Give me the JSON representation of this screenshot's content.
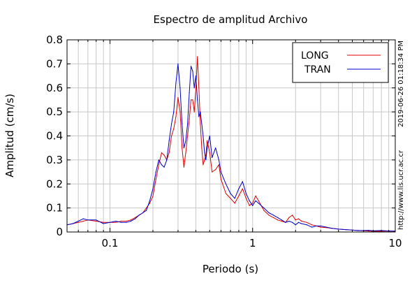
{
  "chart_data": {
    "type": "line",
    "title": "Espectro de amplitud Archivo",
    "xlabel": "Periodo (s)",
    "ylabel": "Amplitud (cm/s)",
    "x_scale": "log",
    "xlim": [
      0.05,
      10
    ],
    "ylim": [
      0,
      0.8
    ],
    "x_ticks": [
      {
        "value": 0.1,
        "label": "0.1"
      },
      {
        "value": 1,
        "label": "1"
      },
      {
        "value": 10,
        "label": "10"
      }
    ],
    "y_ticks": [
      {
        "value": 0,
        "label": "0"
      },
      {
        "value": 0.1,
        "label": "0.1"
      },
      {
        "value": 0.2,
        "label": "0.2"
      },
      {
        "value": 0.3,
        "label": "0.3"
      },
      {
        "value": 0.4,
        "label": "0.4"
      },
      {
        "value": 0.5,
        "label": "0.5"
      },
      {
        "value": 0.6,
        "label": "0.6"
      },
      {
        "value": 0.7,
        "label": "0.7"
      },
      {
        "value": 0.8,
        "label": "0.8"
      }
    ],
    "grid": true,
    "legend_position": "top-right",
    "series": [
      {
        "name": "LONG",
        "color": "#dd0000",
        "x": [
          0.05,
          0.055,
          0.06,
          0.065,
          0.07,
          0.08,
          0.09,
          0.1,
          0.11,
          0.12,
          0.13,
          0.14,
          0.15,
          0.16,
          0.17,
          0.18,
          0.19,
          0.2,
          0.21,
          0.22,
          0.23,
          0.24,
          0.25,
          0.26,
          0.27,
          0.28,
          0.29,
          0.3,
          0.31,
          0.32,
          0.33,
          0.34,
          0.35,
          0.36,
          0.37,
          0.38,
          0.39,
          0.4,
          0.41,
          0.42,
          0.43,
          0.44,
          0.45,
          0.46,
          0.47,
          0.48,
          0.5,
          0.52,
          0.55,
          0.58,
          0.6,
          0.65,
          0.7,
          0.75,
          0.8,
          0.85,
          0.9,
          0.95,
          1,
          1.05,
          1.1,
          1.2,
          1.3,
          1.4,
          1.5,
          1.6,
          1.7,
          1.8,
          1.9,
          2,
          2.1,
          2.2,
          2.4,
          2.6,
          2.8,
          3,
          3.3,
          3.6,
          4,
          4.5,
          5,
          5.5,
          6,
          6.5,
          7,
          8,
          9,
          10
        ],
        "y": [
          0.03,
          0.035,
          0.04,
          0.045,
          0.05,
          0.045,
          0.04,
          0.04,
          0.04,
          0.045,
          0.045,
          0.05,
          0.06,
          0.07,
          0.08,
          0.1,
          0.12,
          0.15,
          0.22,
          0.28,
          0.33,
          0.32,
          0.3,
          0.33,
          0.4,
          0.43,
          0.48,
          0.56,
          0.5,
          0.35,
          0.27,
          0.33,
          0.4,
          0.47,
          0.55,
          0.55,
          0.5,
          0.6,
          0.73,
          0.6,
          0.45,
          0.35,
          0.28,
          0.3,
          0.32,
          0.38,
          0.33,
          0.25,
          0.26,
          0.28,
          0.22,
          0.16,
          0.14,
          0.12,
          0.15,
          0.18,
          0.14,
          0.11,
          0.12,
          0.15,
          0.13,
          0.09,
          0.07,
          0.06,
          0.05,
          0.045,
          0.04,
          0.06,
          0.07,
          0.05,
          0.055,
          0.045,
          0.04,
          0.03,
          0.025,
          0.02,
          0.018,
          0.015,
          0.012,
          0.01,
          0.008,
          0.006,
          0.005,
          0.004,
          0.003,
          0.003,
          0.004,
          0.003
        ]
      },
      {
        "name": "TRAN",
        "color": "#0000cc",
        "x": [
          0.05,
          0.055,
          0.06,
          0.065,
          0.07,
          0.08,
          0.09,
          0.1,
          0.11,
          0.12,
          0.13,
          0.14,
          0.15,
          0.16,
          0.17,
          0.18,
          0.19,
          0.2,
          0.21,
          0.22,
          0.23,
          0.24,
          0.25,
          0.26,
          0.27,
          0.28,
          0.29,
          0.3,
          0.31,
          0.32,
          0.33,
          0.34,
          0.35,
          0.36,
          0.37,
          0.38,
          0.39,
          0.4,
          0.41,
          0.42,
          0.43,
          0.44,
          0.45,
          0.46,
          0.47,
          0.48,
          0.5,
          0.52,
          0.55,
          0.58,
          0.6,
          0.65,
          0.7,
          0.75,
          0.8,
          0.85,
          0.9,
          0.95,
          1,
          1.05,
          1.1,
          1.2,
          1.3,
          1.4,
          1.5,
          1.6,
          1.7,
          1.8,
          1.9,
          2,
          2.1,
          2.2,
          2.4,
          2.6,
          2.8,
          3,
          3.3,
          3.6,
          4,
          4.5,
          5,
          5.5,
          6,
          6.5,
          7,
          8,
          9,
          10
        ],
        "y": [
          0.03,
          0.035,
          0.045,
          0.055,
          0.05,
          0.05,
          0.035,
          0.04,
          0.045,
          0.04,
          0.04,
          0.045,
          0.055,
          0.07,
          0.08,
          0.09,
          0.13,
          0.18,
          0.25,
          0.3,
          0.28,
          0.27,
          0.3,
          0.38,
          0.45,
          0.5,
          0.62,
          0.7,
          0.6,
          0.45,
          0.35,
          0.38,
          0.45,
          0.58,
          0.69,
          0.67,
          0.6,
          0.65,
          0.55,
          0.48,
          0.5,
          0.45,
          0.4,
          0.33,
          0.3,
          0.35,
          0.4,
          0.31,
          0.35,
          0.3,
          0.25,
          0.2,
          0.16,
          0.14,
          0.18,
          0.21,
          0.16,
          0.13,
          0.11,
          0.13,
          0.12,
          0.1,
          0.08,
          0.07,
          0.06,
          0.05,
          0.04,
          0.045,
          0.04,
          0.03,
          0.04,
          0.035,
          0.03,
          0.02,
          0.025,
          0.025,
          0.02,
          0.015,
          0.012,
          0.01,
          0.008,
          0.006,
          0.006,
          0.007,
          0.005,
          0.006,
          0.004,
          0.004
        ]
      }
    ],
    "annotations": {
      "timestamp": "2019-06-26 01:18:34 PM",
      "source": "http://www.lis.ucr.ac.cr"
    }
  }
}
